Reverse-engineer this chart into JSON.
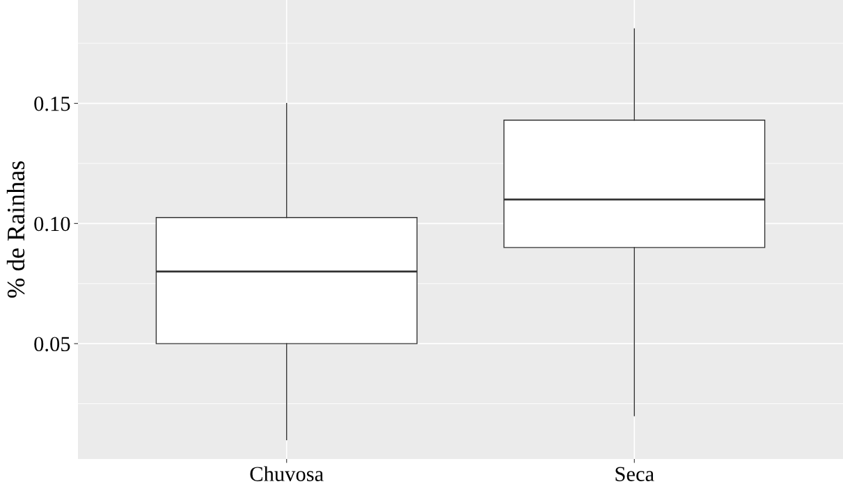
{
  "chart_data": {
    "type": "box",
    "ylabel": "% de Rainhas",
    "categories": [
      "Chuvosa",
      "Seca"
    ],
    "boxes": [
      {
        "low": 0.01,
        "q1": 0.05,
        "median": 0.08,
        "q3": 0.1025,
        "high": 0.15
      },
      {
        "low": 0.02,
        "q1": 0.09,
        "median": 0.11,
        "q3": 0.143,
        "high": 0.181
      }
    ],
    "ylim": [
      0.002,
      0.193
    ],
    "yticks": [
      {
        "value": 0.05,
        "label": "0.05"
      },
      {
        "value": 0.1,
        "label": "0.10"
      },
      {
        "value": 0.15,
        "label": "0.15"
      }
    ],
    "grid": true,
    "legend": false
  }
}
